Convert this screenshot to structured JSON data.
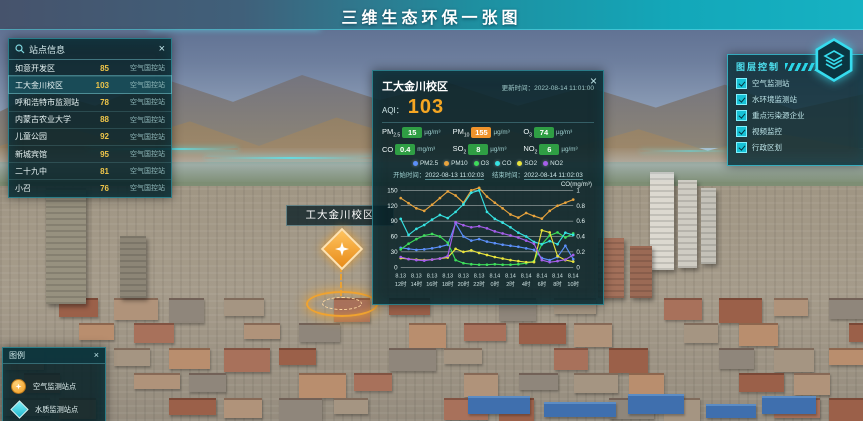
{
  "header": {
    "title": "三维生态环保一张图"
  },
  "station_panel": {
    "title": "站点信息",
    "close": "×",
    "rows": [
      {
        "name": "如意开发区",
        "aqi": "85",
        "type": "空气国控站",
        "selected": false
      },
      {
        "name": "工大金川校区",
        "aqi": "103",
        "type": "空气国控站",
        "selected": true
      },
      {
        "name": "呼和浩特市监测站",
        "aqi": "78",
        "type": "空气国控站",
        "selected": false
      },
      {
        "name": "内蒙古农业大学",
        "aqi": "88",
        "type": "空气国控站",
        "selected": false
      },
      {
        "name": "儿童公园",
        "aqi": "92",
        "type": "空气国控站",
        "selected": false
      },
      {
        "name": "新城宾馆",
        "aqi": "95",
        "type": "空气国控站",
        "selected": false
      },
      {
        "name": "二十九中",
        "aqi": "81",
        "type": "空气国控站",
        "selected": false
      },
      {
        "name": "小召",
        "aqi": "76",
        "type": "空气国控站",
        "selected": false
      }
    ]
  },
  "popup": {
    "title": "工大金川校区",
    "close": "×",
    "update_label": "更新时间：",
    "update_time": "2022-08-14 11:01:00",
    "aqi_label": "AQI：",
    "aqi_value": "103",
    "aqi_color": "#f5a623",
    "pollutants": [
      {
        "main": "PM",
        "sub": "2.5",
        "value": "15",
        "unit": "µg/m³",
        "color": "#2f9e44"
      },
      {
        "main": "PM",
        "sub": "10",
        "value": "155",
        "unit": "µg/m³",
        "color": "#f0932b"
      },
      {
        "main": "O",
        "sub": "3",
        "value": "74",
        "unit": "µg/m³",
        "color": "#2f9e44"
      },
      {
        "main": "CO",
        "sub": "",
        "value": "0.4",
        "unit": "mg/m³",
        "color": "#2f9e44"
      },
      {
        "main": "SO",
        "sub": "2",
        "value": "8",
        "unit": "µg/m³",
        "color": "#2f9e44"
      },
      {
        "main": "NO",
        "sub": "2",
        "value": "6",
        "unit": "µg/m³",
        "color": "#2f9e44"
      }
    ],
    "start_label": "开始时间：",
    "start_time": "2022-08-13 11:02:03",
    "end_label": "结束时间：",
    "end_time": "2022-08-14 11:02:03"
  },
  "chart_data": {
    "type": "line",
    "title": "",
    "x_labels": [
      [
        "8.13",
        "12时"
      ],
      [
        "8.13",
        "14时"
      ],
      [
        "8.13",
        "16时"
      ],
      [
        "8.13",
        "18时"
      ],
      [
        "8.13",
        "20时"
      ],
      [
        "8.13",
        "22时"
      ],
      [
        "8.14",
        "0时"
      ],
      [
        "8.14",
        "2时"
      ],
      [
        "8.14",
        "4时"
      ],
      [
        "8.14",
        "6时"
      ],
      [
        "8.14",
        "8时"
      ],
      [
        "8.14",
        "10时"
      ]
    ],
    "left_axis": {
      "ticks": [
        0,
        30,
        60,
        90,
        120,
        150
      ],
      "max": 150
    },
    "right_axis": {
      "title": "CO(mg/m³)",
      "ticks": [
        0,
        0.2,
        0.4,
        0.6,
        0.8,
        1
      ],
      "max": 1
    },
    "series": [
      {
        "name": "PM2.5",
        "color": "#5b8ff9",
        "axis": "left",
        "values": [
          38,
          36,
          34,
          35,
          37,
          40,
          44,
          86,
          60,
          52,
          55,
          50,
          47,
          44,
          42,
          40,
          37,
          34,
          18,
          14,
          20,
          42,
          16
        ]
      },
      {
        "name": "PM10",
        "color": "#e8a33d",
        "axis": "left",
        "values": [
          135,
          125,
          115,
          110,
          122,
          135,
          148,
          140,
          126,
          150,
          155,
          138,
          126,
          115,
          103,
          97,
          106,
          100,
          95,
          110,
          120,
          126,
          132
        ]
      },
      {
        "name": "O3",
        "color": "#3ddc5a",
        "axis": "left",
        "values": [
          35,
          46,
          55,
          62,
          65,
          60,
          48,
          14,
          8,
          6,
          5,
          5,
          6,
          5,
          5,
          6,
          8,
          12,
          45,
          62,
          68,
          58,
          66
        ]
      },
      {
        "name": "CO",
        "color": "#36e2e2",
        "axis": "right",
        "values": [
          0.63,
          0.42,
          0.5,
          0.55,
          0.62,
          0.68,
          0.64,
          0.72,
          0.82,
          0.97,
          1.0,
          0.72,
          0.63,
          0.58,
          0.52,
          0.45,
          0.4,
          0.33,
          0.3,
          0.34,
          0.3,
          0.45,
          0.42
        ]
      },
      {
        "name": "SO2",
        "color": "#e8e33c",
        "axis": "left",
        "values": [
          18,
          16,
          15,
          14,
          15,
          17,
          19,
          36,
          30,
          33,
          28,
          24,
          20,
          17,
          14,
          12,
          10,
          10,
          72,
          68,
          22,
          14,
          11
        ]
      },
      {
        "name": "NO2",
        "color": "#a55eea",
        "axis": "left",
        "values": [
          20,
          16,
          14,
          13,
          15,
          17,
          22,
          88,
          82,
          78,
          80,
          76,
          70,
          66,
          62,
          58,
          52,
          46,
          14,
          10,
          12,
          15,
          24
        ]
      }
    ]
  },
  "layer_panel": {
    "title": "图层控制",
    "items": [
      {
        "label": "空气监测站",
        "checked": true
      },
      {
        "label": "水环境监测站",
        "checked": true
      },
      {
        "label": "重点污染源企业",
        "checked": true
      },
      {
        "label": "视频监控",
        "checked": true
      },
      {
        "label": "行政区划",
        "checked": true
      }
    ]
  },
  "legend_panel": {
    "title": "图例",
    "close": "×",
    "items": [
      {
        "icon": "air-station-icon",
        "label": "空气监测站点",
        "color": "#f0a32f"
      },
      {
        "icon": "water-station-icon",
        "label": "水质监测站点",
        "color": "#35d0e0"
      }
    ]
  },
  "marker": {
    "label": "工大金川校区"
  }
}
